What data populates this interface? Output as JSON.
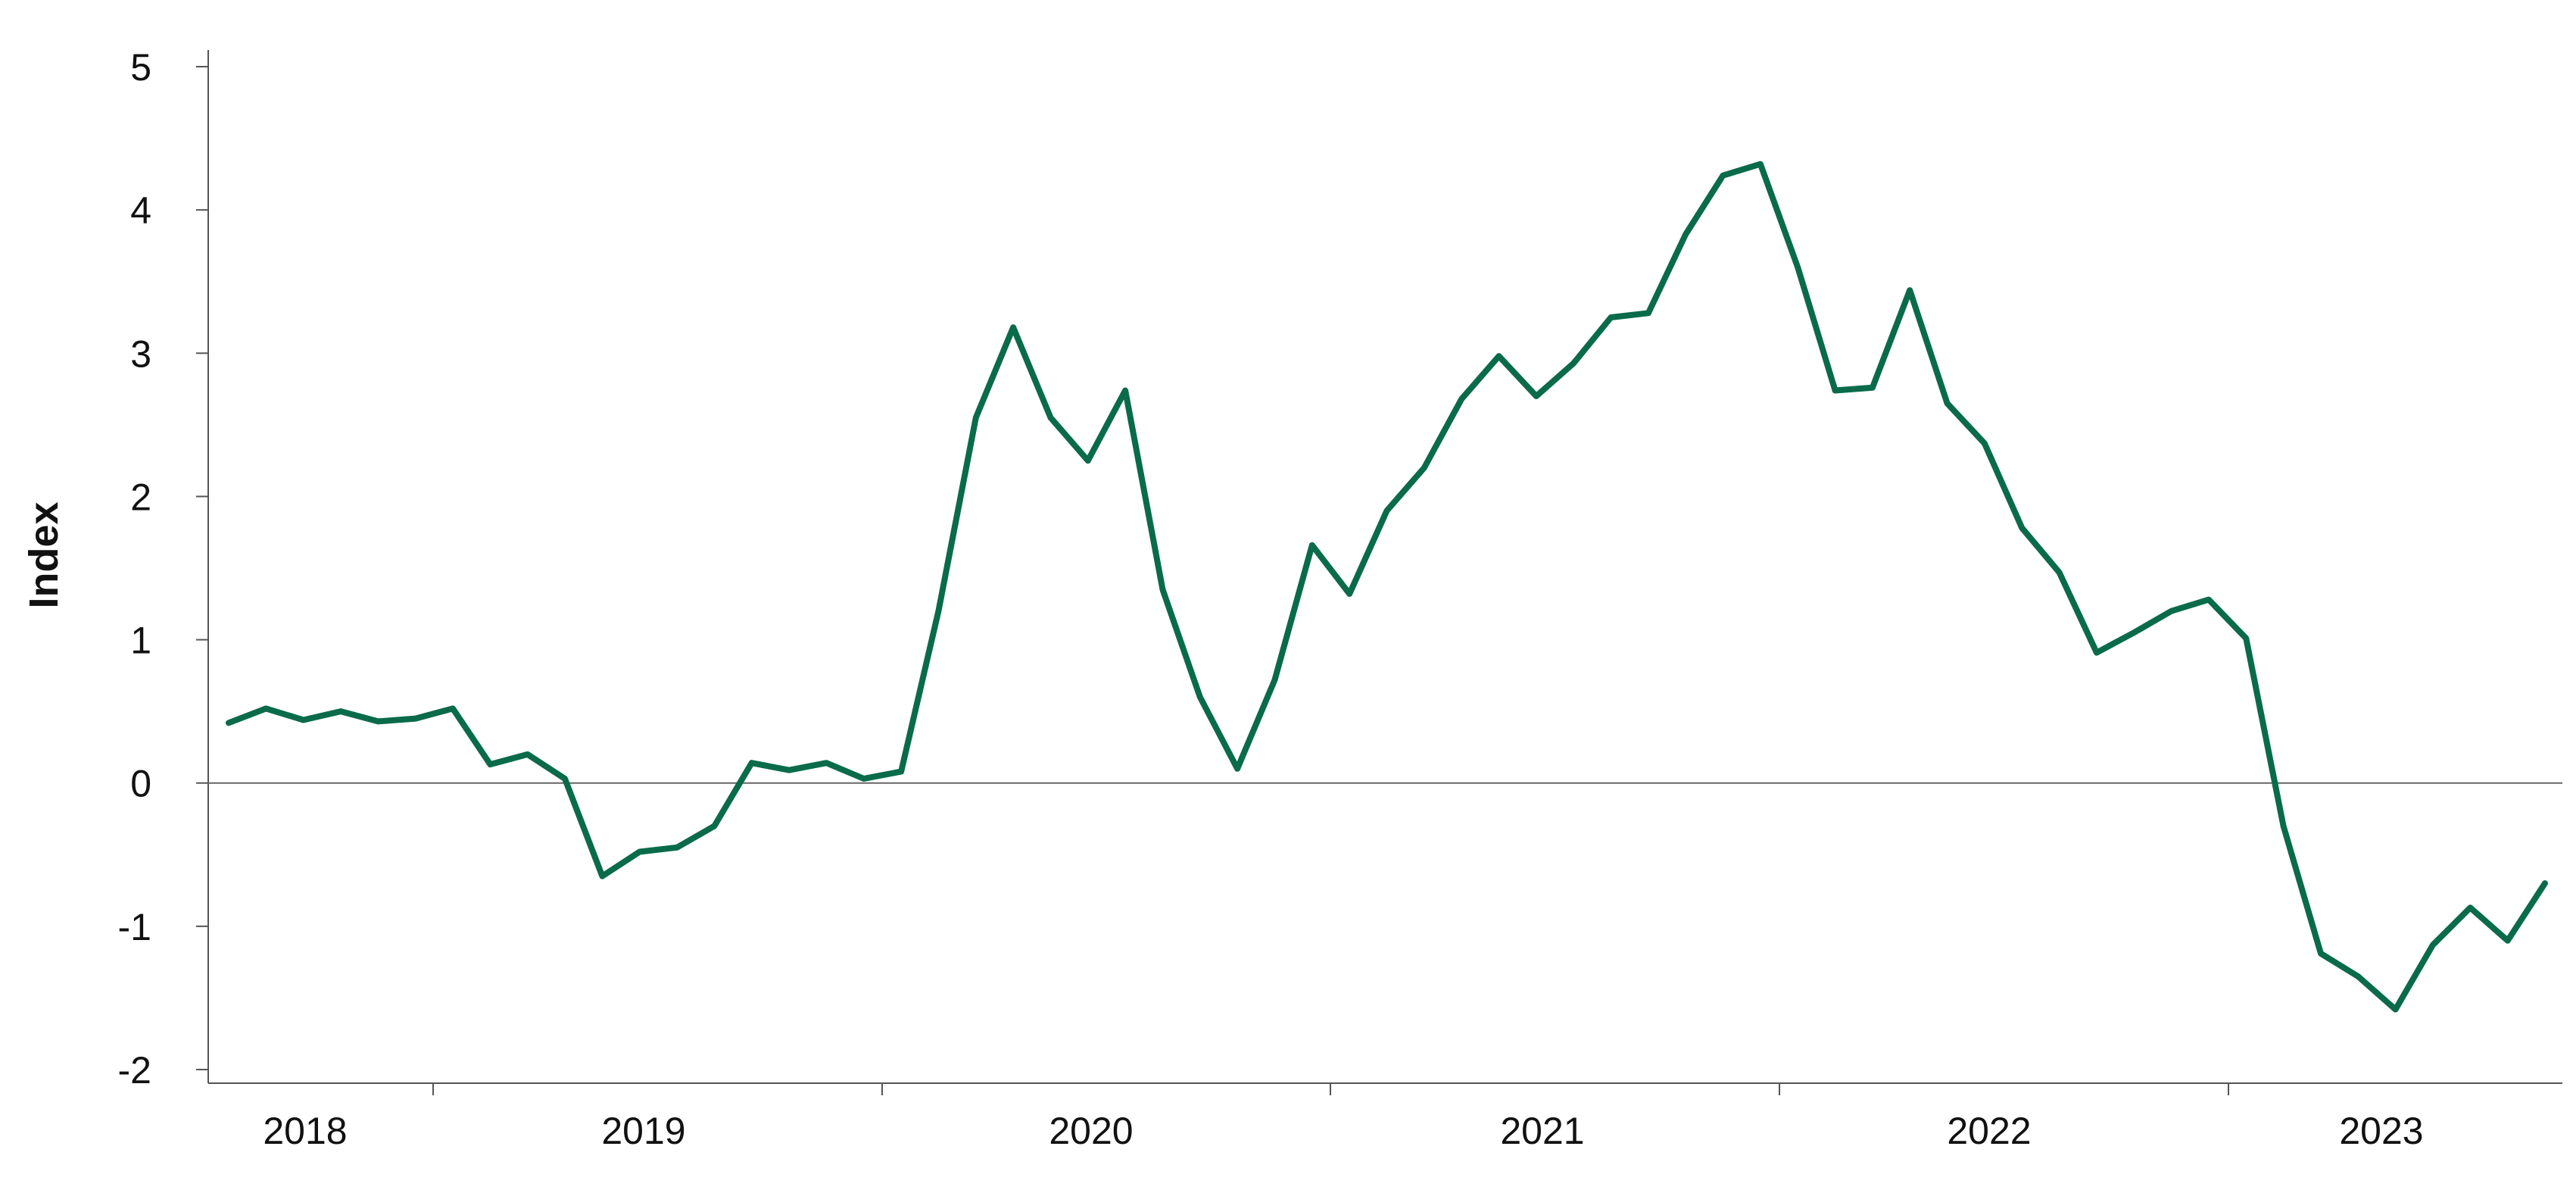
{
  "chart_data": {
    "type": "line",
    "title": "",
    "xlabel": "",
    "ylabel": "Index",
    "ylim": [
      -2,
      5
    ],
    "y_ticks": [
      "5",
      "4",
      "3",
      "2",
      "1",
      "0",
      "-1",
      "-2"
    ],
    "x_year_labels": [
      "2018",
      "2019",
      "2020",
      "2021",
      "2022",
      "2023"
    ],
    "grid": false,
    "legend": "none",
    "colors": {
      "series": "#0a6b4b"
    },
    "series": [
      {
        "values": [
          0.42,
          0.52,
          0.44,
          0.5,
          0.43,
          0.45,
          0.52,
          0.13,
          0.2,
          0.03,
          -0.65,
          -0.48,
          -0.45,
          -0.3,
          0.14,
          0.09,
          0.14,
          0.03,
          0.08,
          1.2,
          2.55,
          3.18,
          2.55,
          2.25,
          2.74,
          1.35,
          0.6,
          0.1,
          0.72,
          1.66,
          1.32,
          1.9,
          2.2,
          2.68,
          2.98,
          2.7,
          2.93,
          3.25,
          3.28,
          3.83,
          4.24,
          4.32,
          3.6,
          2.74,
          2.76,
          3.44,
          2.65,
          2.37,
          1.78,
          1.47,
          0.91,
          1.05,
          1.2,
          1.28,
          1.01,
          -0.3,
          -1.19,
          -1.35,
          -1.58,
          -1.13,
          -0.87,
          -1.1,
          -0.7
        ]
      }
    ]
  }
}
